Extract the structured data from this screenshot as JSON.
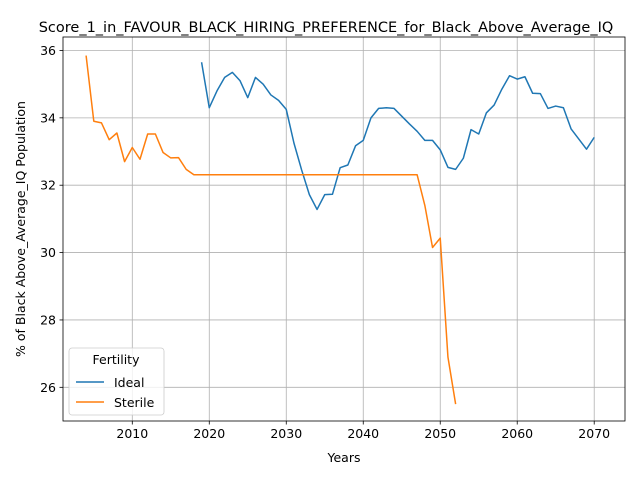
{
  "chart_data": {
    "type": "line",
    "title": "Score_1_in_FAVOUR_BLACK_HIRING_PREFERENCE_for_Black_Above_Average_IQ",
    "xlabel": "Years",
    "ylabel": "% of Black Above_Average_IQ Population",
    "xlim": [
      2001,
      2074
    ],
    "ylim": [
      25.0,
      36.4
    ],
    "xticks": [
      2010,
      2020,
      2030,
      2040,
      2050,
      2060,
      2070
    ],
    "yticks": [
      26,
      28,
      30,
      32,
      34,
      36
    ],
    "grid": true,
    "legend": {
      "title": "Fertility",
      "placement": "lower-left"
    },
    "series": [
      {
        "name": "Ideal",
        "color": "#1f77b4",
        "x": [
          2019,
          2020,
          2021,
          2022,
          2023,
          2024,
          2025,
          2026,
          2027,
          2028,
          2029,
          2030,
          2031,
          2032,
          2033,
          2034,
          2035,
          2036,
          2037,
          2038,
          2039,
          2040,
          2041,
          2042,
          2043,
          2044,
          2045,
          2046,
          2047,
          2048,
          2049,
          2050,
          2051,
          2052,
          2053,
          2054,
          2055,
          2056,
          2057,
          2058,
          2059,
          2060,
          2061,
          2062,
          2063,
          2064,
          2065,
          2066,
          2067,
          2068,
          2069,
          2070
        ],
        "y": [
          35.65,
          34.3,
          34.8,
          35.2,
          35.35,
          35.1,
          34.6,
          35.2,
          35.0,
          34.68,
          34.52,
          34.25,
          33.25,
          32.45,
          31.72,
          31.28,
          31.72,
          31.73,
          32.52,
          32.6,
          33.17,
          33.33,
          34.0,
          34.28,
          34.3,
          34.28,
          34.05,
          33.82,
          33.6,
          33.33,
          33.33,
          33.05,
          32.53,
          32.47,
          32.8,
          33.65,
          33.52,
          34.15,
          34.38,
          34.85,
          35.25,
          35.15,
          35.22,
          34.73,
          34.72,
          34.28,
          34.35,
          34.3,
          33.67,
          33.37,
          33.07,
          33.42
        ]
      },
      {
        "name": "Sterile",
        "color": "#ff7f0e",
        "x": [
          2004,
          2005,
          2006,
          2007,
          2008,
          2009,
          2010,
          2011,
          2012,
          2013,
          2014,
          2015,
          2016,
          2017,
          2018,
          2019,
          2020,
          2021,
          2022,
          2023,
          2024,
          2025,
          2026,
          2027,
          2028,
          2029,
          2030,
          2031,
          2032,
          2033,
          2034,
          2035,
          2036,
          2037,
          2038,
          2039,
          2040,
          2041,
          2042,
          2043,
          2044,
          2045,
          2046,
          2047,
          2048,
          2049,
          2050,
          2051,
          2052
        ],
        "y": [
          35.85,
          33.9,
          33.85,
          33.35,
          33.55,
          32.7,
          33.12,
          32.77,
          33.52,
          33.52,
          32.97,
          32.81,
          32.82,
          32.47,
          32.31,
          32.31,
          32.31,
          32.31,
          32.31,
          32.31,
          32.31,
          32.31,
          32.31,
          32.31,
          32.31,
          32.31,
          32.31,
          32.31,
          32.31,
          32.31,
          32.31,
          32.31,
          32.31,
          32.31,
          32.31,
          32.31,
          32.31,
          32.31,
          32.31,
          32.31,
          32.31,
          32.31,
          32.31,
          32.31,
          31.4,
          30.15,
          30.43,
          26.9,
          25.5
        ]
      }
    ]
  }
}
